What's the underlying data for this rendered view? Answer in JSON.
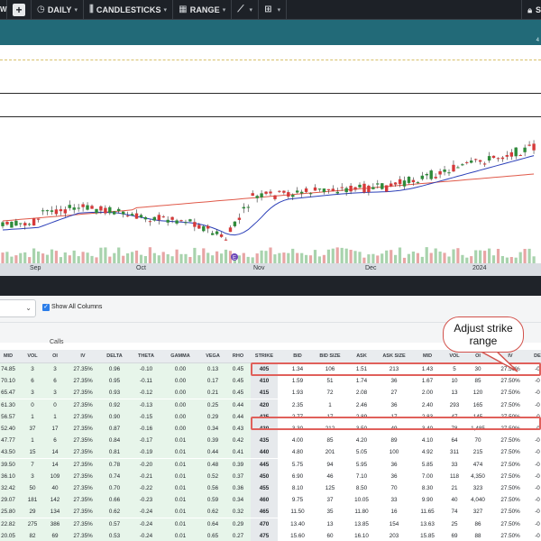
{
  "toolbar": {
    "left_cut": "W",
    "items": [
      {
        "label": "DAILY",
        "icon": "clock-icon"
      },
      {
        "label": "CANDLESTICKS",
        "icon": "candlestick-icon"
      },
      {
        "label": "RANGE",
        "icon": "calendar-icon"
      },
      {
        "label": "",
        "icon": "trend-line-icon"
      },
      {
        "label": "",
        "icon": "grid-icon"
      }
    ],
    "right_label": "S"
  },
  "banner": {
    "corner_text": "4"
  },
  "chart": {
    "x_labels": [
      "Sep",
      "Oct",
      "Nov",
      "Dec",
      "2024"
    ],
    "event_marker": "E",
    "colors": {
      "up": "#2e8b3a",
      "down": "#d63a3a",
      "ma_short": "#2b3fb8",
      "ma_long": "#e05a4a"
    }
  },
  "controls": {
    "show_all_columns": "Show All Columns",
    "show_all_checked": true
  },
  "section_label": "Calls",
  "callout": {
    "line1": "Adjust strike",
    "line2": "range"
  },
  "table": {
    "headers": [
      "MID",
      "VOL",
      "OI",
      "IV",
      "DELTA",
      "THETA",
      "GAMMA",
      "VEGA",
      "RHO",
      "STRIKE",
      "BID",
      "BID SIZE",
      "ASK",
      "ASK SIZE",
      "MID",
      "VOL",
      "OI",
      "IV",
      "DE"
    ],
    "rows": [
      [
        "74.85",
        "3",
        "3",
        "27.35%",
        "0.96",
        "-0.10",
        "0.00",
        "0.13",
        "0.45",
        "405",
        "1.34",
        "106",
        "1.51",
        "213",
        "1.43",
        "5",
        "30",
        "27.50%",
        "-0"
      ],
      [
        "70.10",
        "6",
        "6",
        "27.35%",
        "0.95",
        "-0.11",
        "0.00",
        "0.17",
        "0.45",
        "410",
        "1.59",
        "51",
        "1.74",
        "36",
        "1.67",
        "10",
        "85",
        "27.50%",
        "-0"
      ],
      [
        "65.47",
        "3",
        "3",
        "27.35%",
        "0.93",
        "-0.12",
        "0.00",
        "0.21",
        "0.45",
        "415",
        "1.93",
        "72",
        "2.08",
        "27",
        "2.00",
        "13",
        "120",
        "27.50%",
        "-0"
      ],
      [
        "61.30",
        "0",
        "0",
        "27.35%",
        "0.92",
        "-0.13",
        "0.00",
        "0.25",
        "0.44",
        "420",
        "2.35",
        "1",
        "2.46",
        "36",
        "2.40",
        "293",
        "165",
        "27.50%",
        "-0"
      ],
      [
        "56.57",
        "1",
        "1",
        "27.35%",
        "0.90",
        "-0.15",
        "0.00",
        "0.29",
        "0.44",
        "425",
        "2.77",
        "17",
        "2.89",
        "17",
        "2.83",
        "47",
        "145",
        "27.50%",
        "-0"
      ],
      [
        "52.40",
        "37",
        "17",
        "27.35%",
        "0.87",
        "-0.16",
        "0.00",
        "0.34",
        "0.43",
        "430",
        "3.30",
        "212",
        "3.50",
        "49",
        "3.40",
        "78",
        "1,485",
        "27.50%",
        "-0"
      ],
      [
        "47.77",
        "1",
        "6",
        "27.35%",
        "0.84",
        "-0.17",
        "0.01",
        "0.39",
        "0.42",
        "435",
        "4.00",
        "85",
        "4.20",
        "89",
        "4.10",
        "64",
        "70",
        "27.50%",
        "-0"
      ],
      [
        "43.50",
        "15",
        "14",
        "27.35%",
        "0.81",
        "-0.19",
        "0.01",
        "0.44",
        "0.41",
        "440",
        "4.80",
        "201",
        "5.05",
        "100",
        "4.92",
        "311",
        "215",
        "27.50%",
        "-0"
      ],
      [
        "39.50",
        "7",
        "14",
        "27.35%",
        "0.78",
        "-0.20",
        "0.01",
        "0.48",
        "0.39",
        "445",
        "5.75",
        "94",
        "5.95",
        "36",
        "5.85",
        "33",
        "474",
        "27.50%",
        "-0"
      ],
      [
        "36.10",
        "3",
        "109",
        "27.35%",
        "0.74",
        "-0.21",
        "0.01",
        "0.52",
        "0.37",
        "450",
        "6.90",
        "46",
        "7.10",
        "36",
        "7.00",
        "118",
        "4,350",
        "27.50%",
        "-0"
      ],
      [
        "32.42",
        "50",
        "40",
        "27.35%",
        "0.70",
        "-0.22",
        "0.01",
        "0.56",
        "0.36",
        "455",
        "8.10",
        "125",
        "8.50",
        "70",
        "8.30",
        "21",
        "323",
        "27.50%",
        "-0"
      ],
      [
        "29.07",
        "181",
        "142",
        "27.35%",
        "0.66",
        "-0.23",
        "0.01",
        "0.59",
        "0.34",
        "460",
        "9.75",
        "37",
        "10.05",
        "33",
        "9.90",
        "40",
        "4,040",
        "27.50%",
        "-0"
      ],
      [
        "25.80",
        "29",
        "134",
        "27.35%",
        "0.62",
        "-0.24",
        "0.01",
        "0.62",
        "0.32",
        "465",
        "11.50",
        "35",
        "11.80",
        "16",
        "11.65",
        "74",
        "327",
        "27.50%",
        "-0"
      ],
      [
        "22.82",
        "275",
        "386",
        "27.35%",
        "0.57",
        "-0.24",
        "0.01",
        "0.64",
        "0.29",
        "470",
        "13.40",
        "13",
        "13.85",
        "154",
        "13.63",
        "25",
        "86",
        "27.50%",
        "-0"
      ],
      [
        "20.05",
        "82",
        "69",
        "27.35%",
        "0.53",
        "-0.24",
        "0.01",
        "0.65",
        "0.27",
        "475",
        "15.60",
        "60",
        "16.10",
        "203",
        "15.85",
        "69",
        "88",
        "27.50%",
        "-0"
      ]
    ]
  }
}
